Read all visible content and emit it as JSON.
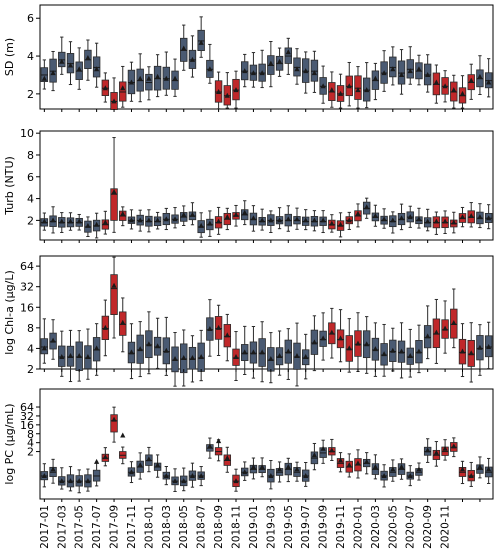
{
  "chart_data": [
    {
      "type": "boxplot",
      "ylabel": "SD (m)",
      "yscale": "linear",
      "ylim": [
        1.2,
        6.7
      ],
      "yticks": [
        2,
        4,
        6
      ],
      "ytick_labels": [
        "2",
        "4",
        "6"
      ],
      "grid": false,
      "colors": {
        "normal": "#4a5a72",
        "highlight": "#c0282a"
      },
      "medians": [
        3.0,
        3.2,
        3.8,
        3.6,
        3.2,
        3.8,
        3.4,
        2.3,
        1.6,
        2.1,
        2.6,
        2.7,
        2.6,
        2.8,
        2.8,
        2.7,
        4.3,
        3.8,
        4.8,
        3.3,
        2.1,
        1.9,
        2.2,
        3.2,
        3.1,
        3.1,
        3.5,
        3.6,
        4.0,
        3.4,
        3.2,
        3.2,
        2.4,
        2.1,
        2.0,
        2.4,
        2.3,
        2.2,
        2.7,
        3.1,
        3.4,
        3.1,
        3.3,
        3.2,
        3.0,
        2.5,
        2.4,
        2.1,
        1.9,
        2.6,
        2.8,
        2.7
      ],
      "means": [
        2.8,
        3.1,
        3.7,
        3.5,
        3.3,
        3.9,
        3.3,
        2.3,
        1.6,
        2.3,
        2.6,
        2.8,
        2.8,
        2.9,
        2.8,
        2.8,
        4.4,
        3.8,
        4.7,
        3.3,
        2.1,
        1.9,
        2.2,
        3.2,
        3.1,
        3.1,
        3.6,
        3.7,
        4.2,
        3.3,
        3.2,
        3.1,
        2.4,
        2.2,
        2.0,
        2.4,
        2.2,
        2.2,
        2.8,
        3.1,
        3.3,
        3.0,
        3.2,
        3.3,
        3.0,
        2.6,
        2.4,
        2.2,
        2.0,
        2.7,
        2.9,
        2.6
      ],
      "highlighted_months": [
        7,
        8,
        9,
        20,
        21,
        22,
        33,
        34,
        35,
        36,
        45,
        46,
        47,
        48,
        49
      ]
    },
    {
      "type": "boxplot",
      "ylabel": "Turb (NTU)",
      "yscale": "linear",
      "ylim": [
        0.2,
        10.2
      ],
      "yticks": [
        2,
        4,
        6,
        8,
        10
      ],
      "ytick_labels": [
        "2",
        "4",
        "6",
        "8",
        "10"
      ],
      "grid": false,
      "medians": [
        1.8,
        1.9,
        1.8,
        1.8,
        1.8,
        1.4,
        1.5,
        1.6,
        4.4,
        2.4,
        2.0,
        2.0,
        1.9,
        1.9,
        2.1,
        2.1,
        2.3,
        2.4,
        1.4,
        1.6,
        1.8,
        2.1,
        2.4,
        2.5,
        2.1,
        1.9,
        2.0,
        2.0,
        2.0,
        2.0,
        1.9,
        1.9,
        1.9,
        1.6,
        1.5,
        2.0,
        2.4,
        3.1,
        2.3,
        2.0,
        1.9,
        2.1,
        2.3,
        2.0,
        1.8,
        1.8,
        1.8,
        1.7,
        2.2,
        2.3,
        2.2,
        2.2
      ],
      "means": [
        1.9,
        2.0,
        1.9,
        1.9,
        1.9,
        1.5,
        1.6,
        1.8,
        4.6,
        2.6,
        2.0,
        2.0,
        2.0,
        2.0,
        2.1,
        2.1,
        2.5,
        2.5,
        1.5,
        1.7,
        1.9,
        2.3,
        2.5,
        2.7,
        2.2,
        2.0,
        2.0,
        2.0,
        2.1,
        2.1,
        2.0,
        2.0,
        2.0,
        1.7,
        1.6,
        2.0,
        2.6,
        3.2,
        2.4,
        2.1,
        2.0,
        2.2,
        2.3,
        2.1,
        1.9,
        1.9,
        1.9,
        1.8,
        2.3,
        2.4,
        2.3,
        2.2
      ]
    },
    {
      "type": "boxplot",
      "ylabel": "log Chl-a (µg/L)",
      "yscale": "log2",
      "ylim": [
        2,
        90
      ],
      "yticks": [
        2,
        4,
        8,
        16,
        32,
        64
      ],
      "ytick_labels": [
        "2",
        "4",
        "8",
        "16",
        "32",
        "64"
      ],
      "grid": false,
      "medians": [
        4.2,
        5.0,
        3.0,
        3.0,
        3.0,
        2.9,
        3.8,
        7.8,
        30.0,
        9.0,
        3.4,
        3.8,
        4.5,
        4.2,
        3.6,
        2.7,
        2.8,
        2.8,
        2.9,
        7.5,
        7.8,
        6.0,
        2.9,
        3.4,
        3.4,
        3.4,
        2.7,
        3.0,
        3.5,
        3.0,
        2.9,
        4.8,
        5.4,
        6.5,
        5.4,
        3.9,
        4.6,
        4.5,
        3.8,
        3.2,
        3.6,
        3.5,
        3.0,
        3.5,
        5.8,
        6.5,
        7.5,
        9.0,
        3.5,
        3.3,
        4.0,
        4.2
      ],
      "means": [
        4.0,
        5.2,
        3.0,
        3.1,
        3.1,
        3.0,
        4.0,
        8.0,
        33.0,
        9.5,
        3.5,
        3.9,
        4.6,
        4.3,
        3.7,
        2.8,
        2.9,
        2.9,
        3.0,
        7.7,
        8.0,
        6.2,
        3.0,
        3.5,
        3.5,
        3.5,
        2.8,
        3.1,
        3.6,
        3.1,
        3.0,
        4.9,
        5.6,
        6.8,
        5.6,
        4.0,
        4.7,
        4.6,
        3.9,
        3.3,
        3.7,
        3.6,
        3.1,
        3.6,
        6.0,
        6.8,
        7.8,
        9.4,
        3.6,
        3.4,
        4.1,
        4.2
      ]
    },
    {
      "type": "boxplot",
      "ylabel": "log PC (µg/mL)",
      "yscale": "log2",
      "ylim": [
        0.05,
        260
      ],
      "yticks": [
        2,
        4,
        8,
        16,
        32,
        64
      ],
      "ytick_labels": [
        "2",
        "4",
        "8",
        "16",
        "32",
        "64"
      ],
      "grid": false,
      "medians": [
        0.3,
        0.4,
        0.2,
        0.2,
        0.2,
        0.2,
        0.3,
        1.2,
        22.0,
        1.5,
        0.4,
        0.6,
        1.0,
        0.6,
        0.3,
        0.2,
        0.2,
        0.3,
        0.3,
        2.6,
        2.0,
        1.0,
        0.2,
        0.4,
        0.5,
        0.5,
        0.3,
        0.4,
        0.5,
        0.4,
        0.3,
        1.2,
        1.8,
        2.0,
        0.8,
        0.6,
        0.7,
        0.8,
        0.5,
        0.3,
        0.4,
        0.5,
        0.3,
        0.4,
        2.0,
        1.5,
        2.0,
        2.8,
        0.4,
        0.3,
        0.5,
        0.4
      ],
      "means": [
        0.3,
        0.5,
        0.2,
        0.2,
        0.2,
        0.2,
        0.9,
        1.3,
        24.0,
        7.0,
        0.4,
        0.7,
        1.1,
        0.7,
        0.3,
        0.2,
        0.2,
        0.3,
        0.3,
        3.0,
        4.5,
        1.2,
        0.2,
        0.4,
        0.6,
        0.6,
        0.3,
        0.5,
        0.6,
        0.5,
        0.3,
        1.5,
        2.5,
        2.2,
        1.0,
        0.7,
        0.8,
        0.9,
        0.6,
        0.3,
        0.5,
        0.6,
        0.3,
        0.5,
        2.2,
        1.8,
        2.5,
        3.0,
        0.5,
        0.3,
        0.6,
        0.5
      ]
    }
  ],
  "x_tick_labels": [
    "2017-01",
    "2017-03",
    "2017-05",
    "2017-07",
    "2017-09",
    "2017-11",
    "2018-01",
    "2018-03",
    "2018-05",
    "2018-07",
    "2018-09",
    "2018-11",
    "2019-01",
    "2019-03",
    "2019-05",
    "2019-07",
    "2019-09",
    "2019-11",
    "2020-01",
    "2020-03",
    "2020-05",
    "2020-07",
    "2020-09",
    "2020-11"
  ]
}
